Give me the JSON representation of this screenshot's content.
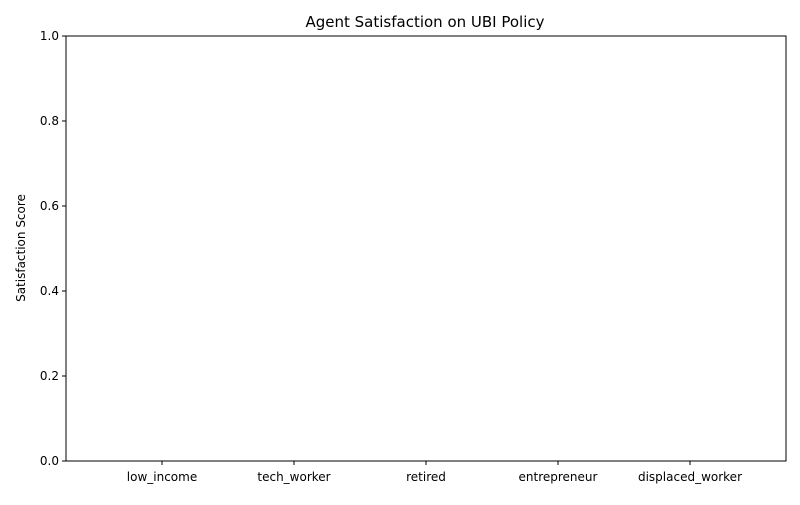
{
  "chart_data": {
    "type": "bar",
    "title": "Agent Satisfaction on UBI Policy",
    "xlabel": "",
    "ylabel": "Satisfaction Score",
    "categories": [
      "low_income",
      "tech_worker",
      "retired",
      "entrepreneur",
      "displaced_worker"
    ],
    "values": [
      0,
      0,
      0,
      0,
      0
    ],
    "ylim": [
      0,
      1
    ],
    "yticks": [
      "0.0",
      "0.2",
      "0.4",
      "0.6",
      "0.8",
      "1.0"
    ],
    "grid": false,
    "legend": "none"
  }
}
